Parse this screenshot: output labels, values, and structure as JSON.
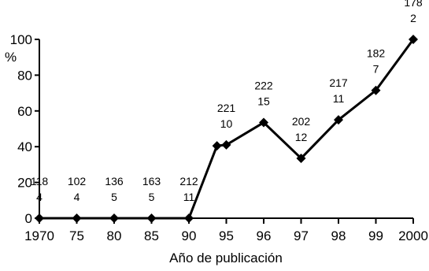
{
  "chart_data": {
    "type": "line",
    "title": "",
    "xlabel": "Año de publicación",
    "ylabel": "%",
    "categories": [
      "1970",
      "75",
      "80",
      "85",
      "90",
      "95",
      "96",
      "97",
      "98",
      "99",
      "2000"
    ],
    "y_ticks": [
      "0",
      "20",
      "40",
      "60",
      "80",
      "100"
    ],
    "ylim": [
      0,
      100
    ],
    "grid": false,
    "legend": "none",
    "marker": "diamond",
    "line_color": "#000000",
    "points": [
      {
        "x": "1970",
        "y": 0,
        "label_top": "118",
        "label_bottom": "4"
      },
      {
        "x": "75",
        "y": 0,
        "label_top": "102",
        "label_bottom": "4"
      },
      {
        "x": "80",
        "y": 0,
        "label_top": "136",
        "label_bottom": "5"
      },
      {
        "x": "85",
        "y": 0,
        "label_top": "163",
        "label_bottom": "5"
      },
      {
        "x": "90",
        "y": 0,
        "label_top": "212",
        "label_bottom": "11"
      },
      {
        "x": "94",
        "y": 40.5,
        "label_top": "",
        "label_bottom": ""
      },
      {
        "x": "95",
        "y": 41,
        "label_top": "221",
        "label_bottom": "10"
      },
      {
        "x": "96",
        "y": 53.5,
        "label_top": "222",
        "label_bottom": "15"
      },
      {
        "x": "97",
        "y": 33.5,
        "label_top": "202",
        "label_bottom": "12"
      },
      {
        "x": "98",
        "y": 55,
        "label_top": "217",
        "label_bottom": "11"
      },
      {
        "x": "99",
        "y": 71.5,
        "label_top": "182",
        "label_bottom": "7"
      },
      {
        "x": "2000",
        "y": 100,
        "label_top": "178",
        "label_bottom": "2"
      }
    ]
  }
}
